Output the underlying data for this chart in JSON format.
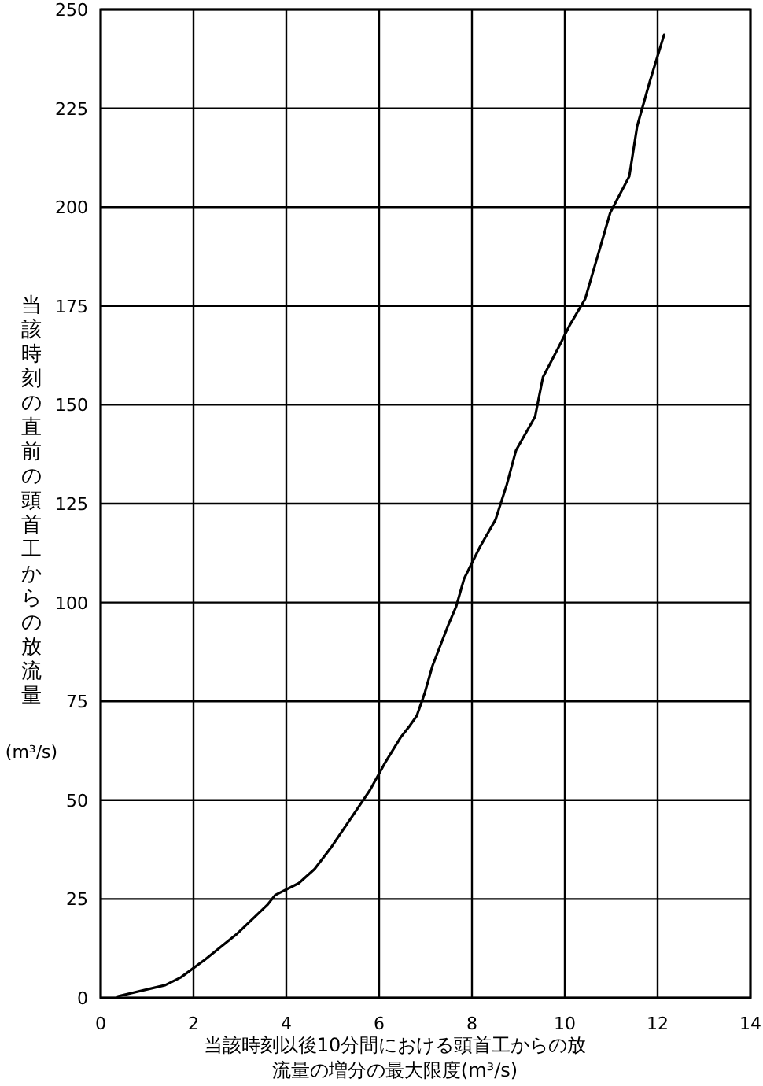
{
  "chart_data": {
    "type": "line",
    "xlabel": "当該時刻以後10分間における頭首工からの放流量の増分の最大限度(m³/s)",
    "ylabel": "当該時刻の直前の頭首工からの放流量(m³/s)",
    "series": [
      {
        "color": "#000000",
        "x": [
          0.37,
          1.39,
          1.73,
          2.24,
          2.92,
          3.59,
          3.76,
          4.27,
          4.61,
          4.95,
          5.46,
          5.8,
          6.14,
          6.47,
          6.64,
          6.81,
          6.98,
          7.15,
          7.49,
          7.66,
          7.83,
          8.17,
          8.51,
          8.75,
          8.95,
          9.36,
          9.53,
          9.86,
          10.1,
          10.44,
          10.98,
          11.39,
          11.56,
          11.83,
          12.14
        ],
        "values": [
          0.4,
          3.2,
          5.2,
          9.6,
          16,
          23.5,
          26,
          29,
          32.6,
          37.8,
          46.6,
          52.5,
          59.7,
          66,
          68.5,
          71.3,
          77,
          84,
          94.3,
          99,
          106,
          114,
          121,
          129.8,
          138.5,
          147,
          157,
          164.4,
          170,
          176.8,
          198.6,
          207.8,
          220.5,
          231.7,
          243.6
        ]
      }
    ],
    "xlim": [
      0,
      14
    ],
    "xticks": [
      0,
      2,
      4,
      6,
      8,
      10,
      12,
      14
    ],
    "ylim": [
      0,
      250
    ],
    "yticks": [
      0,
      25,
      50,
      75,
      100,
      125,
      150,
      175,
      200,
      225,
      250
    ],
    "grid": true,
    "marker": "none",
    "line_style": "solid"
  }
}
